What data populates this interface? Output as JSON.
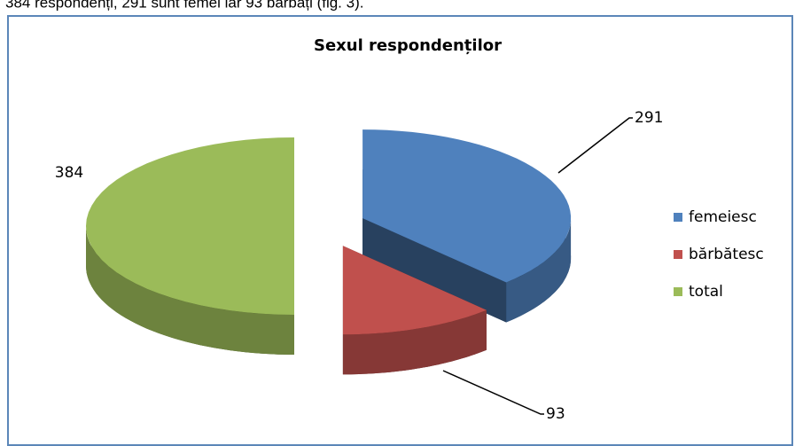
{
  "intro_text": "384 respondenți, 291 sunt femei iar 93 bărbați (fig. 3).",
  "chart_data": {
    "type": "pie",
    "title": "Sexul respondenților",
    "categories": [
      "femeiesc",
      "bărbătesc",
      "total"
    ],
    "values": [
      291,
      93,
      384
    ],
    "colors": [
      "#4f81bd",
      "#c0504d",
      "#9bbb59"
    ],
    "legend": "right"
  }
}
